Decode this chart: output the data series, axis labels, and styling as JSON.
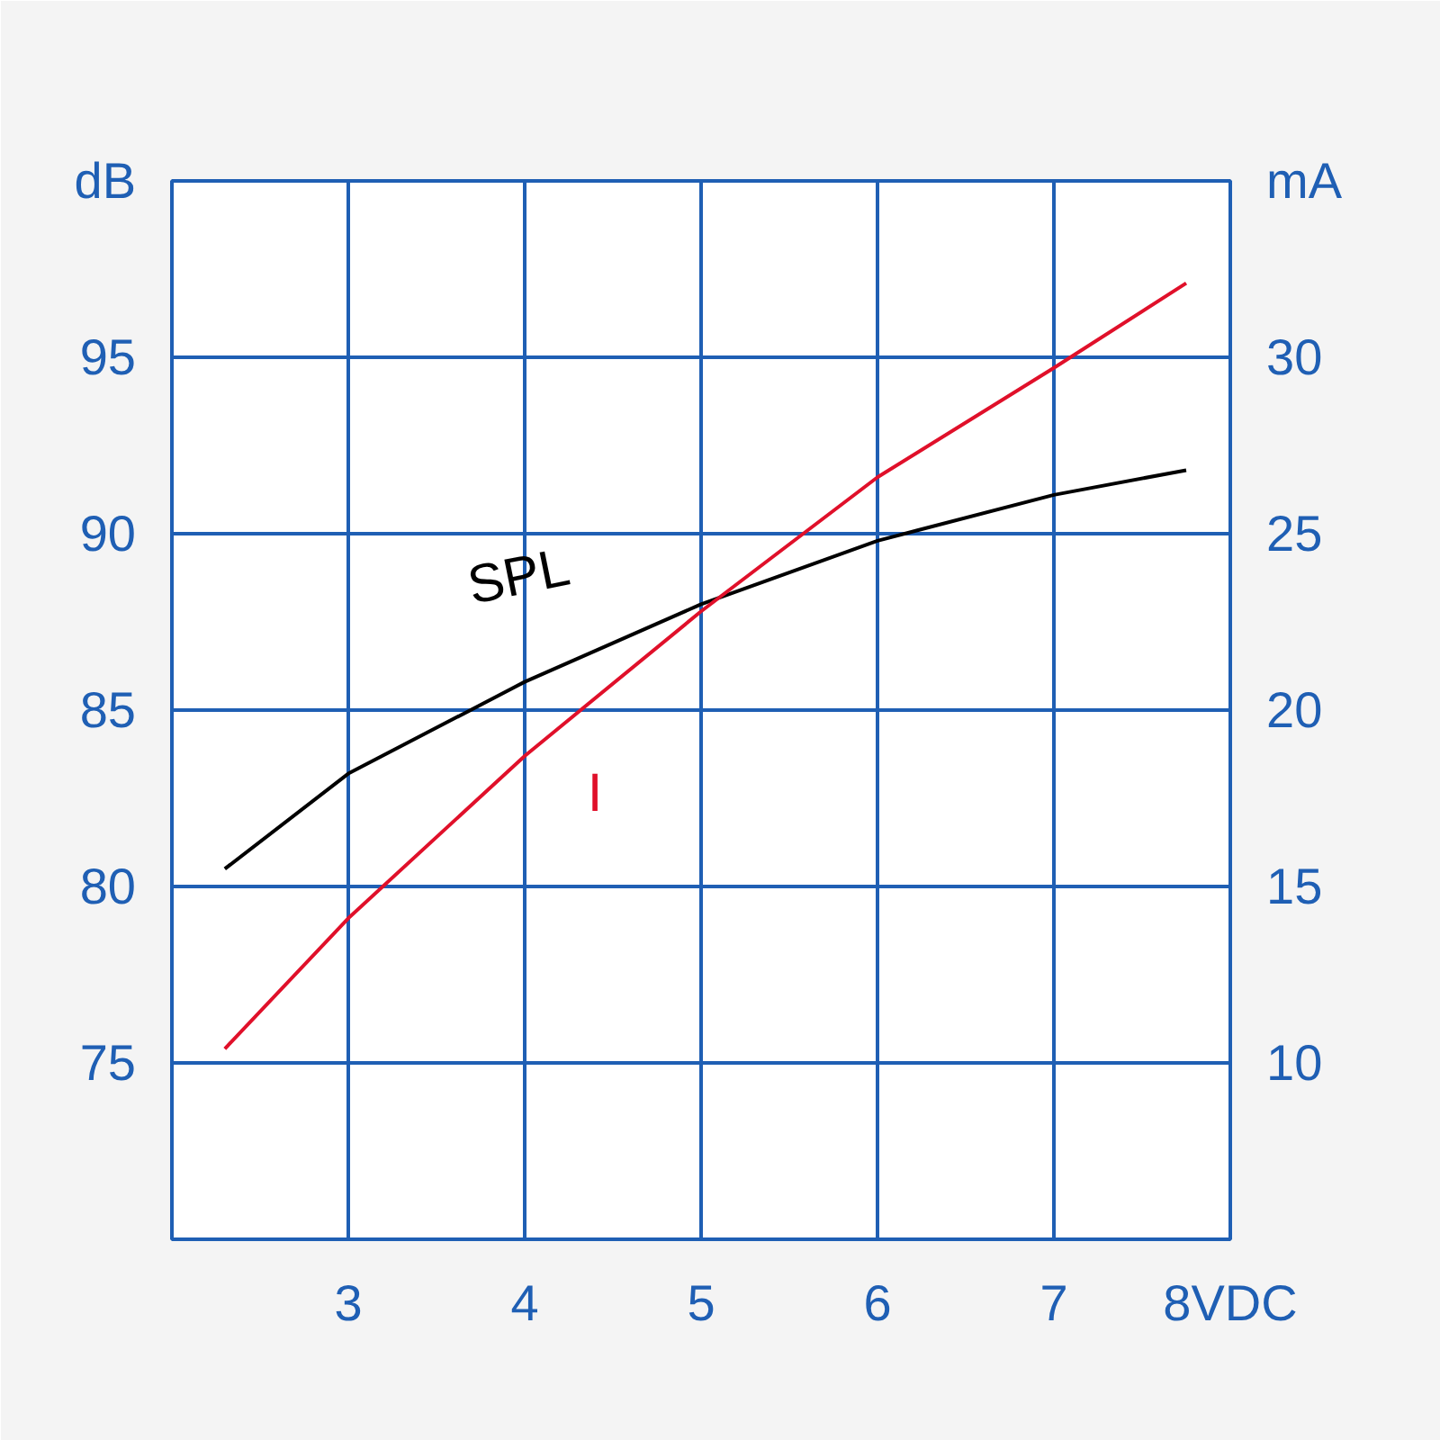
{
  "chart_data": {
    "type": "line",
    "ylabel": "dB",
    "y2label": "mA",
    "x": [
      2.3,
      3,
      4,
      5,
      6,
      7,
      7.75
    ],
    "series": [
      {
        "name": "SPL",
        "color": "#000000",
        "values": [
          80.5,
          83.2,
          85.8,
          88.0,
          89.8,
          91.1,
          91.8
        ]
      },
      {
        "name": "I",
        "color": "#e0102a",
        "axis": "y2",
        "values": [
          10.4,
          14.1,
          18.7,
          22.8,
          26.6,
          29.7,
          32.1
        ]
      }
    ],
    "xlim": [
      2,
      8
    ],
    "xticks": [
      3,
      4,
      5,
      6,
      7,
      {
        "value": 8,
        "label": "8VDC"
      }
    ],
    "ylim": [
      70,
      100
    ],
    "yticks": [
      75,
      80,
      85,
      90,
      95
    ],
    "y2lim": [
      5,
      35
    ],
    "y2ticks": [
      10,
      15,
      20,
      25,
      30
    ],
    "grid": true,
    "marker": "none",
    "line_style": "solid"
  }
}
